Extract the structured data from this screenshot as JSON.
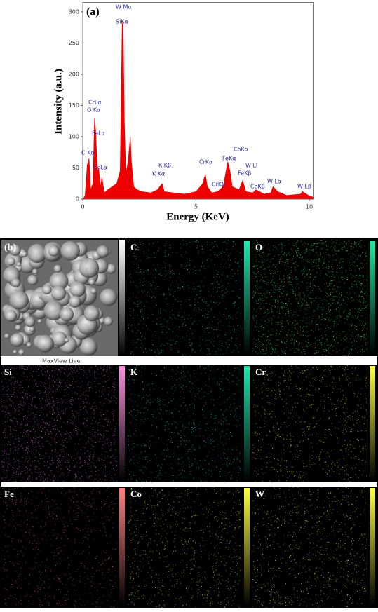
{
  "chart_data": {
    "type": "area",
    "panel_label": "(a)",
    "y_label": "Intensity (a.u.)",
    "x_label": "Energy (KeV)",
    "color": "#ee0000",
    "x": [
      0,
      0.1,
      0.2,
      0.28,
      0.35,
      0.45,
      0.52,
      0.57,
      0.65,
      0.7,
      0.78,
      0.85,
      0.95,
      1.1,
      1.3,
      1.5,
      1.65,
      1.74,
      1.78,
      1.84,
      1.9,
      2.0,
      2.1,
      2.15,
      2.25,
      2.4,
      2.6,
      3.0,
      3.3,
      3.5,
      3.6,
      4.0,
      4.5,
      5.0,
      5.3,
      5.41,
      5.5,
      5.7,
      5.95,
      6.2,
      6.4,
      6.5,
      6.6,
      6.9,
      7.06,
      7.2,
      7.5,
      7.65,
      8.0,
      8.3,
      8.4,
      8.6,
      9.0,
      9.6,
      9.7,
      10.0,
      10.2
    ],
    "values": [
      0,
      5,
      55,
      65,
      15,
      25,
      130,
      110,
      45,
      50,
      20,
      35,
      10,
      15,
      20,
      25,
      45,
      280,
      285,
      120,
      40,
      60,
      100,
      60,
      20,
      15,
      12,
      10,
      15,
      25,
      12,
      10,
      8,
      12,
      25,
      40,
      20,
      10,
      12,
      20,
      60,
      45,
      20,
      15,
      30,
      12,
      10,
      15,
      8,
      10,
      20,
      12,
      6,
      8,
      12,
      5,
      3
    ],
    "xlim": [
      0,
      10.2
    ],
    "ylim": [
      0,
      315
    ],
    "xticks": [
      0,
      5,
      10
    ],
    "yticks": [
      0,
      50,
      100,
      150,
      200,
      250,
      300
    ],
    "annotations": [
      "W Mα",
      "SiKα",
      "CrLα",
      "O Kα",
      "FeLα",
      "C Kα",
      "CoLα",
      "K Kβ",
      "K Kα",
      "CrKα",
      "CrKβ",
      "FeKα",
      "CoKα",
      "FeKβ",
      "W Ll",
      "CoKβ",
      "W Lα",
      "W Lβ"
    ]
  },
  "maps": {
    "panel_label": "(b)",
    "sem_caption": "MaxView Live",
    "elements": [
      "C",
      "O",
      "Si",
      "K",
      "Cr",
      "Fe",
      "Co",
      "W"
    ]
  }
}
